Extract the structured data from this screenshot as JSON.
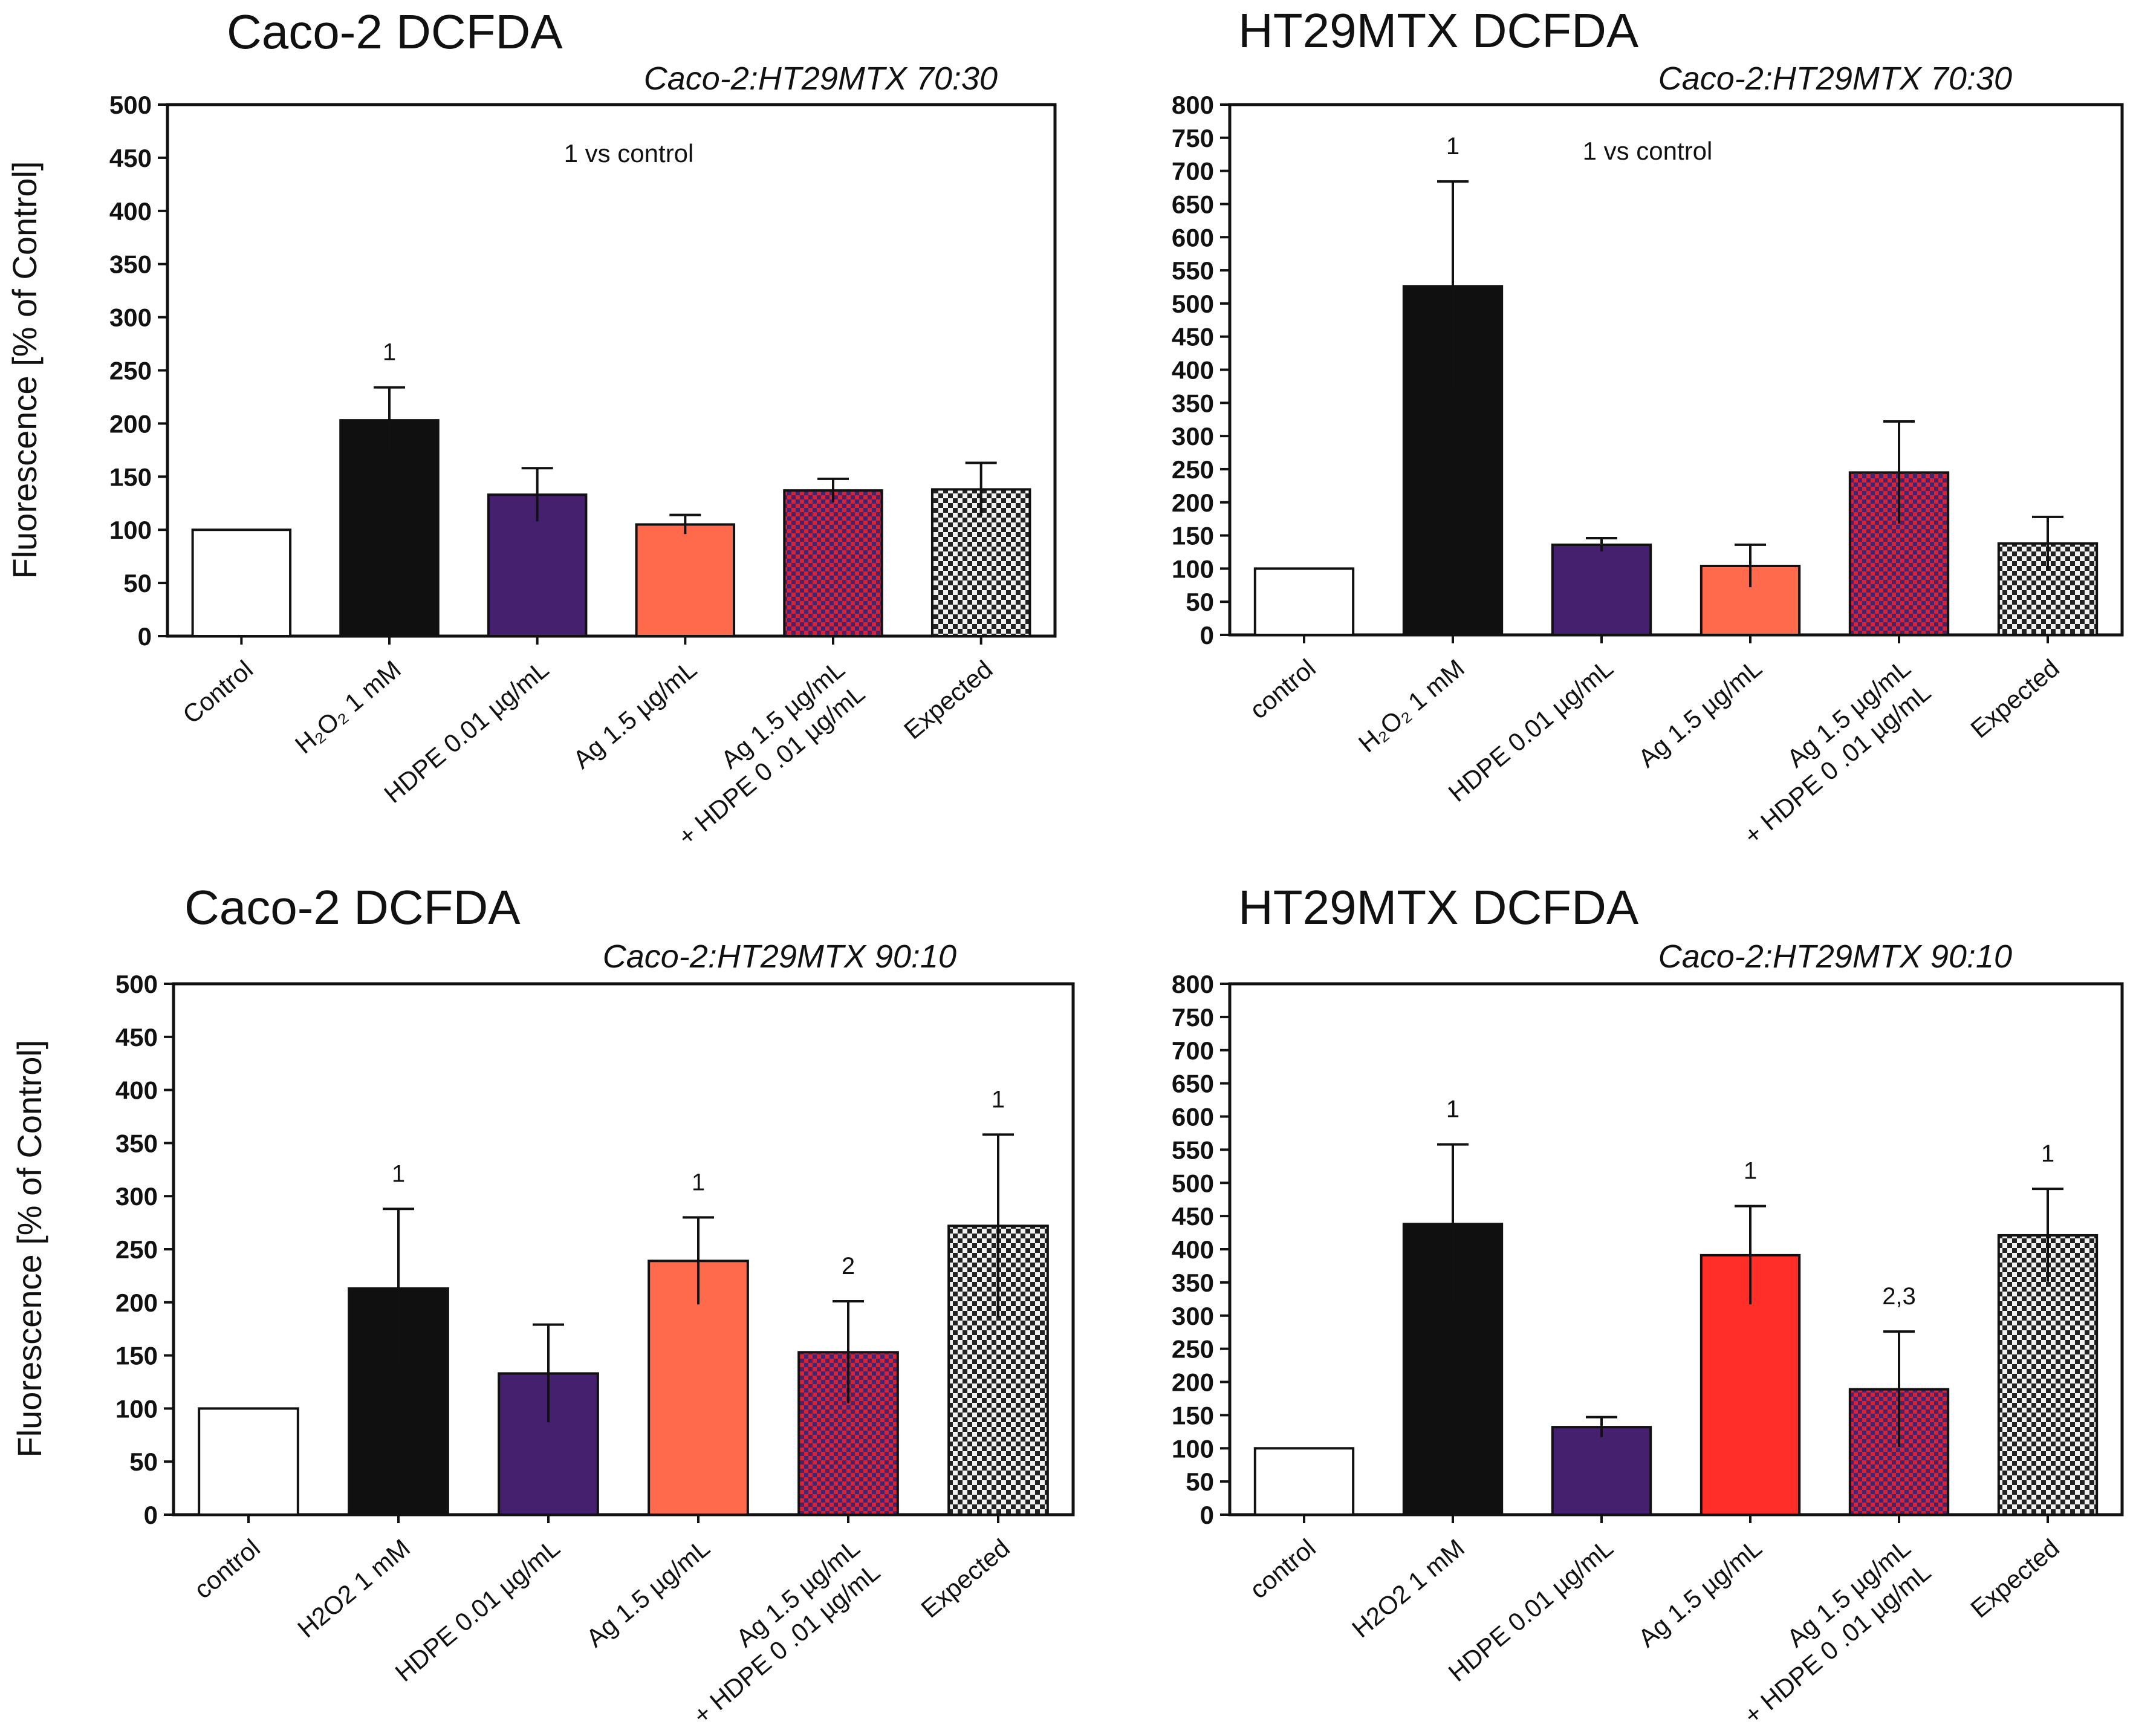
{
  "colors": {
    "white": "#ffffff",
    "black": "#101010",
    "purple": "#45206f",
    "salmon": "#ff6a4d",
    "red": "#ff2e28",
    "check_red": "#d92335",
    "check_blue": "#44246f",
    "check_gray_dark": "#222222",
    "check_gray_light": "#f2f2f2",
    "axis": "#111111"
  },
  "chart_data": [
    {
      "type": "bar",
      "title": "Caco-2 DCFDA",
      "subtitle": "Caco-2:HT29MTX   70:30",
      "note": "1 vs control",
      "xlabel": "",
      "ylabel": "Fluorescence [% of Control]",
      "ylim": [
        0,
        500
      ],
      "yticks": [
        "0",
        "50",
        "100",
        "150",
        "200",
        "250",
        "300",
        "350",
        "400",
        "450",
        "500"
      ],
      "categories": [
        [
          "Control"
        ],
        [
          "H₂O₂ 1 mM"
        ],
        [
          "HDPE 0.01 µg/mL"
        ],
        [
          "Ag 1.5 µg/mL"
        ],
        [
          "Ag 1.5 µg/mL",
          "+ HDPE 0 .01 µg/mL"
        ],
        [
          "Expected"
        ]
      ],
      "values": [
        100,
        203,
        133,
        105,
        137,
        138
      ],
      "errors": [
        0,
        31,
        25,
        9,
        11,
        25
      ],
      "fills": [
        "white",
        "black",
        "purple",
        "salmon",
        "check_red_blue",
        "check_gray"
      ],
      "annotations": [
        "",
        "1",
        "",
        "",
        "",
        ""
      ]
    },
    {
      "type": "bar",
      "title": "HT29MTX DCFDA",
      "subtitle": "Caco-2:HT29MTX   70:30",
      "note": "1 vs control",
      "xlabel": "",
      "ylabel": "",
      "ylim": [
        0,
        800
      ],
      "yticks": [
        "0",
        "50",
        "100",
        "150",
        "200",
        "250",
        "300",
        "350",
        "400",
        "450",
        "500",
        "550",
        "600",
        "650",
        "700",
        "750",
        "800"
      ],
      "categories": [
        [
          "control"
        ],
        [
          "H₂O₂ 1 mM"
        ],
        [
          "HDPE 0.01 µg/mL"
        ],
        [
          "Ag 1.5 µg/mL"
        ],
        [
          "Ag 1.5 µg/mL",
          "+ HDPE 0 .01 µg/mL"
        ],
        [
          "Expected"
        ]
      ],
      "values": [
        100,
        526,
        136,
        104,
        245,
        138
      ],
      "errors": [
        0,
        158,
        10,
        32,
        77,
        40
      ],
      "fills": [
        "white",
        "black",
        "purple",
        "salmon",
        "check_red_blue",
        "check_gray"
      ],
      "annotations": [
        "",
        "1",
        "",
        "",
        "",
        ""
      ]
    },
    {
      "type": "bar",
      "title": "Caco-2 DCFDA",
      "subtitle": "Caco-2:HT29MTX   90:10",
      "note": "",
      "xlabel": "",
      "ylabel": "Fluorescence [% of Control]",
      "ylim": [
        0,
        500
      ],
      "yticks": [
        "0",
        "50",
        "100",
        "150",
        "200",
        "250",
        "300",
        "350",
        "400",
        "450",
        "500"
      ],
      "categories": [
        [
          "control"
        ],
        [
          "H2O2 1 mM"
        ],
        [
          "HDPE 0.01 µg/mL"
        ],
        [
          "Ag 1.5 µg/mL"
        ],
        [
          "Ag 1.5 µg/mL",
          "+ HDPE 0 .01 µg/mL"
        ],
        [
          "Expected"
        ]
      ],
      "values": [
        100,
        213,
        133,
        239,
        153,
        272
      ],
      "errors": [
        0,
        75,
        46,
        41,
        48,
        86
      ],
      "fills": [
        "white",
        "black",
        "purple",
        "salmon",
        "check_red_blue",
        "check_gray"
      ],
      "annotations": [
        "",
        "1",
        "",
        "1",
        "2",
        "1"
      ]
    },
    {
      "type": "bar",
      "title": "HT29MTX DCFDA",
      "subtitle": "Caco-2:HT29MTX   90:10",
      "note": "",
      "xlabel": "",
      "ylabel": "",
      "ylim": [
        0,
        800
      ],
      "yticks": [
        "0",
        "50",
        "100",
        "150",
        "200",
        "250",
        "300",
        "350",
        "400",
        "450",
        "500",
        "550",
        "600",
        "650",
        "700",
        "750",
        "800"
      ],
      "categories": [
        [
          "control"
        ],
        [
          "H2O2 1 mM"
        ],
        [
          "HDPE 0.01 µg/mL"
        ],
        [
          "Ag 1.5 µg/mL"
        ],
        [
          "Ag 1.5 µg/mL",
          "+ HDPE 0 .01 µg/mL"
        ],
        [
          "Expected"
        ]
      ],
      "values": [
        100,
        438,
        132,
        391,
        189,
        421
      ],
      "errors": [
        0,
        120,
        15,
        74,
        87,
        70
      ],
      "fills": [
        "white",
        "black",
        "purple",
        "red",
        "check_red_blue",
        "check_gray"
      ],
      "annotations": [
        "",
        "1",
        "",
        "1",
        "2,3",
        "1"
      ]
    }
  ]
}
